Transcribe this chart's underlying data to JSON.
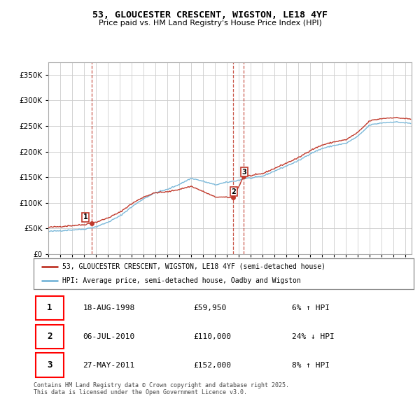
{
  "title": "53, GLOUCESTER CRESCENT, WIGSTON, LE18 4YF",
  "subtitle": "Price paid vs. HM Land Registry's House Price Index (HPI)",
  "legend_line1": "53, GLOUCESTER CRESCENT, WIGSTON, LE18 4YF (semi-detached house)",
  "legend_line2": "HPI: Average price, semi-detached house, Oadby and Wigston",
  "footer": "Contains HM Land Registry data © Crown copyright and database right 2025.\nThis data is licensed under the Open Government Licence v3.0.",
  "transactions": [
    {
      "label": "1",
      "date": "18-AUG-1998",
      "price": 59950,
      "price_str": "£59,950",
      "pct": "6% ↑ HPI",
      "x": 1998.63
    },
    {
      "label": "2",
      "date": "06-JUL-2010",
      "price": 110000,
      "price_str": "£110,000",
      "pct": "24% ↓ HPI",
      "x": 2010.51
    },
    {
      "label": "3",
      "date": "27-MAY-2011",
      "price": 152000,
      "price_str": "£152,000",
      "pct": "8% ↑ HPI",
      "x": 2011.4
    }
  ],
  "hpi_color": "#7ab8d9",
  "price_color": "#c0392b",
  "vline_color": "#c0392b",
  "grid_color": "#cccccc",
  "ylim": [
    0,
    375000
  ],
  "yticks": [
    0,
    50000,
    100000,
    150000,
    200000,
    250000,
    300000,
    350000
  ],
  "xlim": [
    1995.0,
    2025.5
  ],
  "hpi_anchors": {
    "1995.0": 44000,
    "1996.0": 45500,
    "1997.0": 47000,
    "1998.0": 48500,
    "1999.0": 53000,
    "2000.0": 62000,
    "2001.0": 74000,
    "2002.0": 92000,
    "2003.0": 108000,
    "2004.0": 120000,
    "2005.0": 126000,
    "2006.0": 136000,
    "2007.0": 148000,
    "2008.0": 142000,
    "2009.0": 135000,
    "2010.0": 140000,
    "2010.5": 142000,
    "2011.0": 144000,
    "2011.5": 148000,
    "2012.0": 148000,
    "2013.0": 152000,
    "2014.0": 162000,
    "2015.0": 172000,
    "2016.0": 182000,
    "2017.0": 196000,
    "2018.0": 206000,
    "2019.0": 212000,
    "2020.0": 216000,
    "2021.0": 230000,
    "2022.0": 252000,
    "2023.0": 256000,
    "2024.0": 258000,
    "2025.0": 256000,
    "2025.4": 255000
  }
}
